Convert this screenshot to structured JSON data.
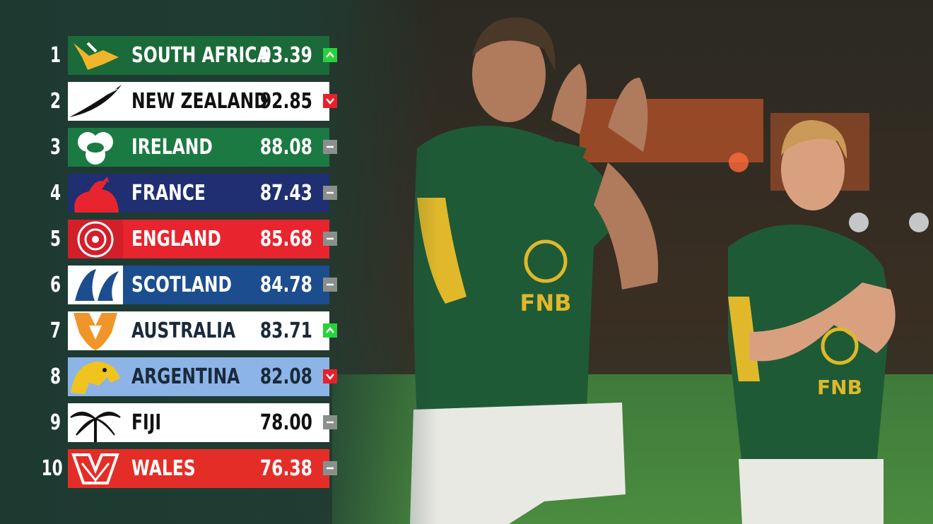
{
  "rankings": [
    {
      "rank": 1,
      "team": "SOUTH AFRICA",
      "points": "93.39"
    },
    {
      "rank": 2,
      "team": "NEW ZEALAND",
      "points": "92.85"
    },
    {
      "rank": 3,
      "team": "IRELAND",
      "points": "88.08"
    },
    {
      "rank": 4,
      "team": "FRANCE",
      "points": "87.43"
    },
    {
      "rank": 5,
      "team": "ENGLAND",
      "points": "85.68"
    },
    {
      "rank": 6,
      "team": "SCOTLAND",
      "points": "84.78"
    },
    {
      "rank": 7,
      "team": "AUSTRALIA",
      "points": "83.71"
    },
    {
      "rank": 8,
      "team": "ARGENTINA",
      "points": "82.08"
    },
    {
      "rank": 9,
      "team": "FIJI",
      "points": "78.00"
    },
    {
      "rank": 10,
      "team": "WALES",
      "points": "76.38"
    }
  ]
}
